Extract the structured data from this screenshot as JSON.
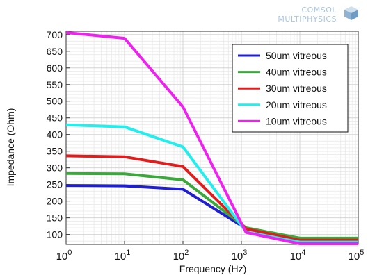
{
  "logo": {
    "line1": "COMSOL",
    "line2": "MULTIPHYSICS",
    "mark": "cube-icon"
  },
  "chart_data": {
    "type": "line",
    "xlabel": "Frequency (Hz)",
    "ylabel": "Impedance (Ohm)",
    "x_scale": "log",
    "xlim": [
      1,
      100000
    ],
    "ylim": [
      70,
      710
    ],
    "x_ticks": [
      {
        "value": 1,
        "base": "10",
        "exp": "0"
      },
      {
        "value": 10,
        "base": "10",
        "exp": "1"
      },
      {
        "value": 100,
        "base": "10",
        "exp": "2"
      },
      {
        "value": 1000,
        "base": "10",
        "exp": "3"
      },
      {
        "value": 10000,
        "base": "10",
        "exp": "4"
      },
      {
        "value": 100000,
        "base": "10",
        "exp": "5"
      }
    ],
    "y_ticks": [
      100,
      150,
      200,
      250,
      300,
      350,
      400,
      450,
      500,
      550,
      600,
      650,
      700
    ],
    "grid": true,
    "legend_position": "top-right",
    "x": [
      1,
      10,
      100,
      1200,
      10000,
      100000
    ],
    "series": [
      {
        "name": "50um vitreous",
        "color": "#1f1fd0",
        "values": [
          247,
          246,
          236,
          118,
          87,
          87
        ]
      },
      {
        "name": "40um vitreous",
        "color": "#3aa83a",
        "values": [
          283,
          282,
          264,
          120,
          89,
          89
        ]
      },
      {
        "name": "30um vitreous",
        "color": "#e01c1c",
        "values": [
          336,
          333,
          304,
          117,
          83,
          83
        ]
      },
      {
        "name": "20um vitreous",
        "color": "#22eeee",
        "values": [
          429,
          423,
          363,
          108,
          77,
          77
        ]
      },
      {
        "name": "10um vitreous",
        "color": "#ee22ee",
        "values": [
          706,
          689,
          483,
          106,
          72,
          72
        ]
      }
    ]
  }
}
